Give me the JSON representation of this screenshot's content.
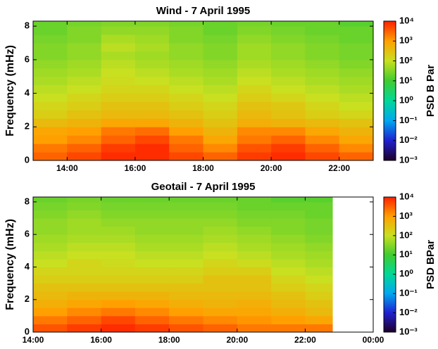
{
  "chart_data": [
    {
      "type": "heatmap",
      "title": "Wind - 7 April 1995",
      "ylabel": "Frequency (mHz)",
      "colorbar_label": "PSD B Par",
      "xlim": [
        13,
        23
      ],
      "xticks": [
        {
          "value": 14,
          "label": "14:00"
        },
        {
          "value": 16,
          "label": "16:00"
        },
        {
          "value": 18,
          "label": "18:00"
        },
        {
          "value": 20,
          "label": "20:00"
        },
        {
          "value": 22,
          "label": "22:00"
        }
      ],
      "ylim": [
        0,
        8.3
      ],
      "yticks": [
        0,
        2,
        4,
        6,
        8
      ],
      "zlim": [
        0.001,
        10000
      ],
      "zscale": "log",
      "zticks": [
        {
          "value": 10000,
          "label": "10⁴"
        },
        {
          "value": 1000,
          "label": "10³"
        },
        {
          "value": 100,
          "label": "10²"
        },
        {
          "value": 10,
          "label": "10¹"
        },
        {
          "value": 1,
          "label": "10⁰"
        },
        {
          "value": 0.1,
          "label": "10⁻¹"
        },
        {
          "value": 0.01,
          "label": "10⁻²"
        },
        {
          "value": 0.001,
          "label": "10⁻³"
        }
      ],
      "colors": [
        "#1e0028",
        "#2020d0",
        "#00a8f0",
        "#00d898",
        "#40cc30",
        "#c8e020",
        "#ffa000",
        "#ff2000"
      ],
      "xbins": [
        13,
        14,
        15,
        16,
        17,
        18,
        19,
        20,
        21,
        22,
        23
      ],
      "ybins": [
        0,
        0.5,
        1,
        1.5,
        2,
        2.5,
        3,
        3.5,
        4,
        4.5,
        5,
        5.5,
        6,
        6.5,
        7,
        7.5,
        8,
        8.5
      ],
      "z": [
        [
          3000,
          5000,
          8000,
          8000,
          5000,
          3000,
          6000,
          8000,
          5000,
          3000
        ],
        [
          2000,
          3000,
          6000,
          8000,
          3000,
          1500,
          4000,
          6000,
          3000,
          1500
        ],
        [
          1000,
          1500,
          3000,
          5000,
          2000,
          800,
          2000,
          3000,
          1500,
          800
        ],
        [
          800,
          1000,
          2000,
          2500,
          1000,
          500,
          1500,
          1500,
          800,
          500
        ],
        [
          400,
          500,
          800,
          800,
          500,
          300,
          600,
          500,
          400,
          300
        ],
        [
          200,
          300,
          400,
          400,
          300,
          200,
          400,
          300,
          200,
          150
        ],
        [
          150,
          200,
          300,
          300,
          200,
          150,
          300,
          250,
          150,
          100
        ],
        [
          100,
          150,
          200,
          200,
          150,
          100,
          200,
          150,
          100,
          80
        ],
        [
          80,
          100,
          150,
          150,
          100,
          80,
          150,
          100,
          80,
          60
        ],
        [
          60,
          80,
          120,
          100,
          80,
          60,
          100,
          80,
          60,
          50
        ],
        [
          50,
          60,
          100,
          80,
          60,
          50,
          80,
          60,
          50,
          40
        ],
        [
          40,
          50,
          80,
          60,
          50,
          40,
          60,
          50,
          40,
          30
        ],
        [
          30,
          40,
          60,
          50,
          40,
          30,
          50,
          40,
          30,
          25
        ],
        [
          30,
          40,
          80,
          60,
          40,
          30,
          50,
          40,
          30,
          25
        ],
        [
          25,
          30,
          60,
          50,
          30,
          25,
          40,
          30,
          25,
          20
        ],
        [
          20,
          30,
          40,
          40,
          30,
          20,
          30,
          25,
          20,
          20
        ],
        [
          20,
          25,
          30,
          30,
          25,
          20,
          25,
          20,
          20,
          15
        ]
      ]
    },
    {
      "type": "heatmap",
      "title": "Geotail - 7 April 1995",
      "ylabel": "Frequency (mHz)",
      "colorbar_label": "PSD BPar",
      "xlim": [
        14,
        24
      ],
      "xticks": [
        {
          "value": 14,
          "label": "14:00"
        },
        {
          "value": 16,
          "label": "16:00"
        },
        {
          "value": 18,
          "label": "18:00"
        },
        {
          "value": 20,
          "label": "20:00"
        },
        {
          "value": 22,
          "label": "22:00"
        },
        {
          "value": 24,
          "label": "00:00"
        }
      ],
      "ylim": [
        0,
        8.3
      ],
      "yticks": [
        0,
        2,
        4,
        6,
        8
      ],
      "zlim": [
        0.001,
        10000
      ],
      "zscale": "log",
      "zticks": [
        {
          "value": 10000,
          "label": "10⁴"
        },
        {
          "value": 1000,
          "label": "10³"
        },
        {
          "value": 100,
          "label": "10²"
        },
        {
          "value": 10,
          "label": "10¹"
        },
        {
          "value": 1,
          "label": "10⁰"
        },
        {
          "value": 0.1,
          "label": "10⁻¹"
        },
        {
          "value": 0.01,
          "label": "10⁻²"
        },
        {
          "value": 0.001,
          "label": "10⁻³"
        }
      ],
      "colors": [
        "#1e0028",
        "#2020d0",
        "#00a8f0",
        "#00d898",
        "#40cc30",
        "#c8e020",
        "#ffa000",
        "#ff2000"
      ],
      "xbins": [
        14,
        15,
        16,
        17,
        18,
        19,
        20,
        21,
        22,
        22.8
      ],
      "ybins": [
        0,
        0.5,
        1,
        1.5,
        2,
        2.5,
        3,
        3.5,
        4,
        4.5,
        5,
        5.5,
        6,
        6.5,
        7,
        7.5,
        8,
        8.5
      ],
      "z": [
        [
          4000,
          6000,
          8000,
          6000,
          4000,
          3000,
          2000,
          2000,
          2000
        ],
        [
          2000,
          3000,
          5000,
          3000,
          2000,
          1500,
          1200,
          1000,
          800
        ],
        [
          1000,
          1500,
          2000,
          1500,
          1000,
          800,
          800,
          600,
          400
        ],
        [
          600,
          800,
          1000,
          800,
          600,
          500,
          600,
          400,
          300
        ],
        [
          400,
          500,
          500,
          500,
          400,
          400,
          400,
          300,
          200
        ],
        [
          300,
          300,
          300,
          300,
          300,
          300,
          300,
          200,
          150
        ],
        [
          200,
          200,
          200,
          200,
          200,
          300,
          300,
          150,
          100
        ],
        [
          150,
          150,
          150,
          150,
          150,
          200,
          200,
          100,
          80
        ],
        [
          100,
          150,
          120,
          100,
          100,
          150,
          120,
          80,
          60
        ],
        [
          80,
          100,
          100,
          80,
          80,
          100,
          80,
          60,
          50
        ],
        [
          60,
          80,
          80,
          60,
          60,
          80,
          60,
          50,
          40
        ],
        [
          50,
          60,
          60,
          50,
          50,
          60,
          50,
          40,
          30
        ],
        [
          40,
          50,
          50,
          40,
          40,
          50,
          40,
          30,
          25
        ],
        [
          40,
          50,
          40,
          40,
          40,
          40,
          30,
          30,
          25
        ],
        [
          30,
          40,
          30,
          30,
          30,
          30,
          25,
          25,
          20
        ],
        [
          25,
          30,
          25,
          25,
          25,
          25,
          20,
          20,
          20
        ],
        [
          20,
          25,
          20,
          20,
          20,
          20,
          20,
          15,
          15
        ]
      ]
    }
  ]
}
